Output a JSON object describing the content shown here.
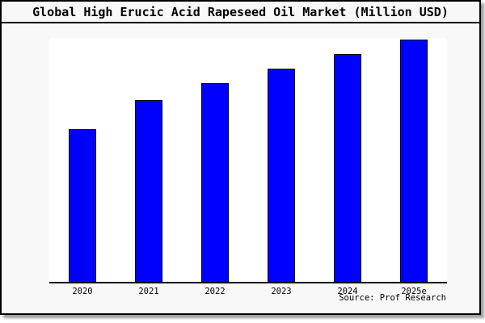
{
  "title": "Global High Erucic Acid Rapeseed Oil Market (Million USD)",
  "source_note": "Source: Prof Research",
  "colors": {
    "bar": "#0000ff",
    "bar_border": "#000000",
    "frame_background": "#f8f8f8",
    "plot_background": "#ffffff",
    "border": "#000000"
  },
  "chart_data": {
    "type": "bar",
    "title": "Global High Erucic Acid Rapeseed Oil Market (Million USD)",
    "categories": [
      "2020",
      "2021",
      "2022",
      "2023",
      "2024",
      "2025e"
    ],
    "values": [
      63,
      75,
      82,
      88,
      94,
      100
    ],
    "values_note": "Relative estimates from bar heights; chart displays no y-axis scale or data labels",
    "xlabel": "",
    "ylabel": "",
    "ylim": [
      0,
      100
    ],
    "y_axis_visible": false,
    "grid": false,
    "legend": false,
    "annotation": "Source: Prof Research"
  }
}
